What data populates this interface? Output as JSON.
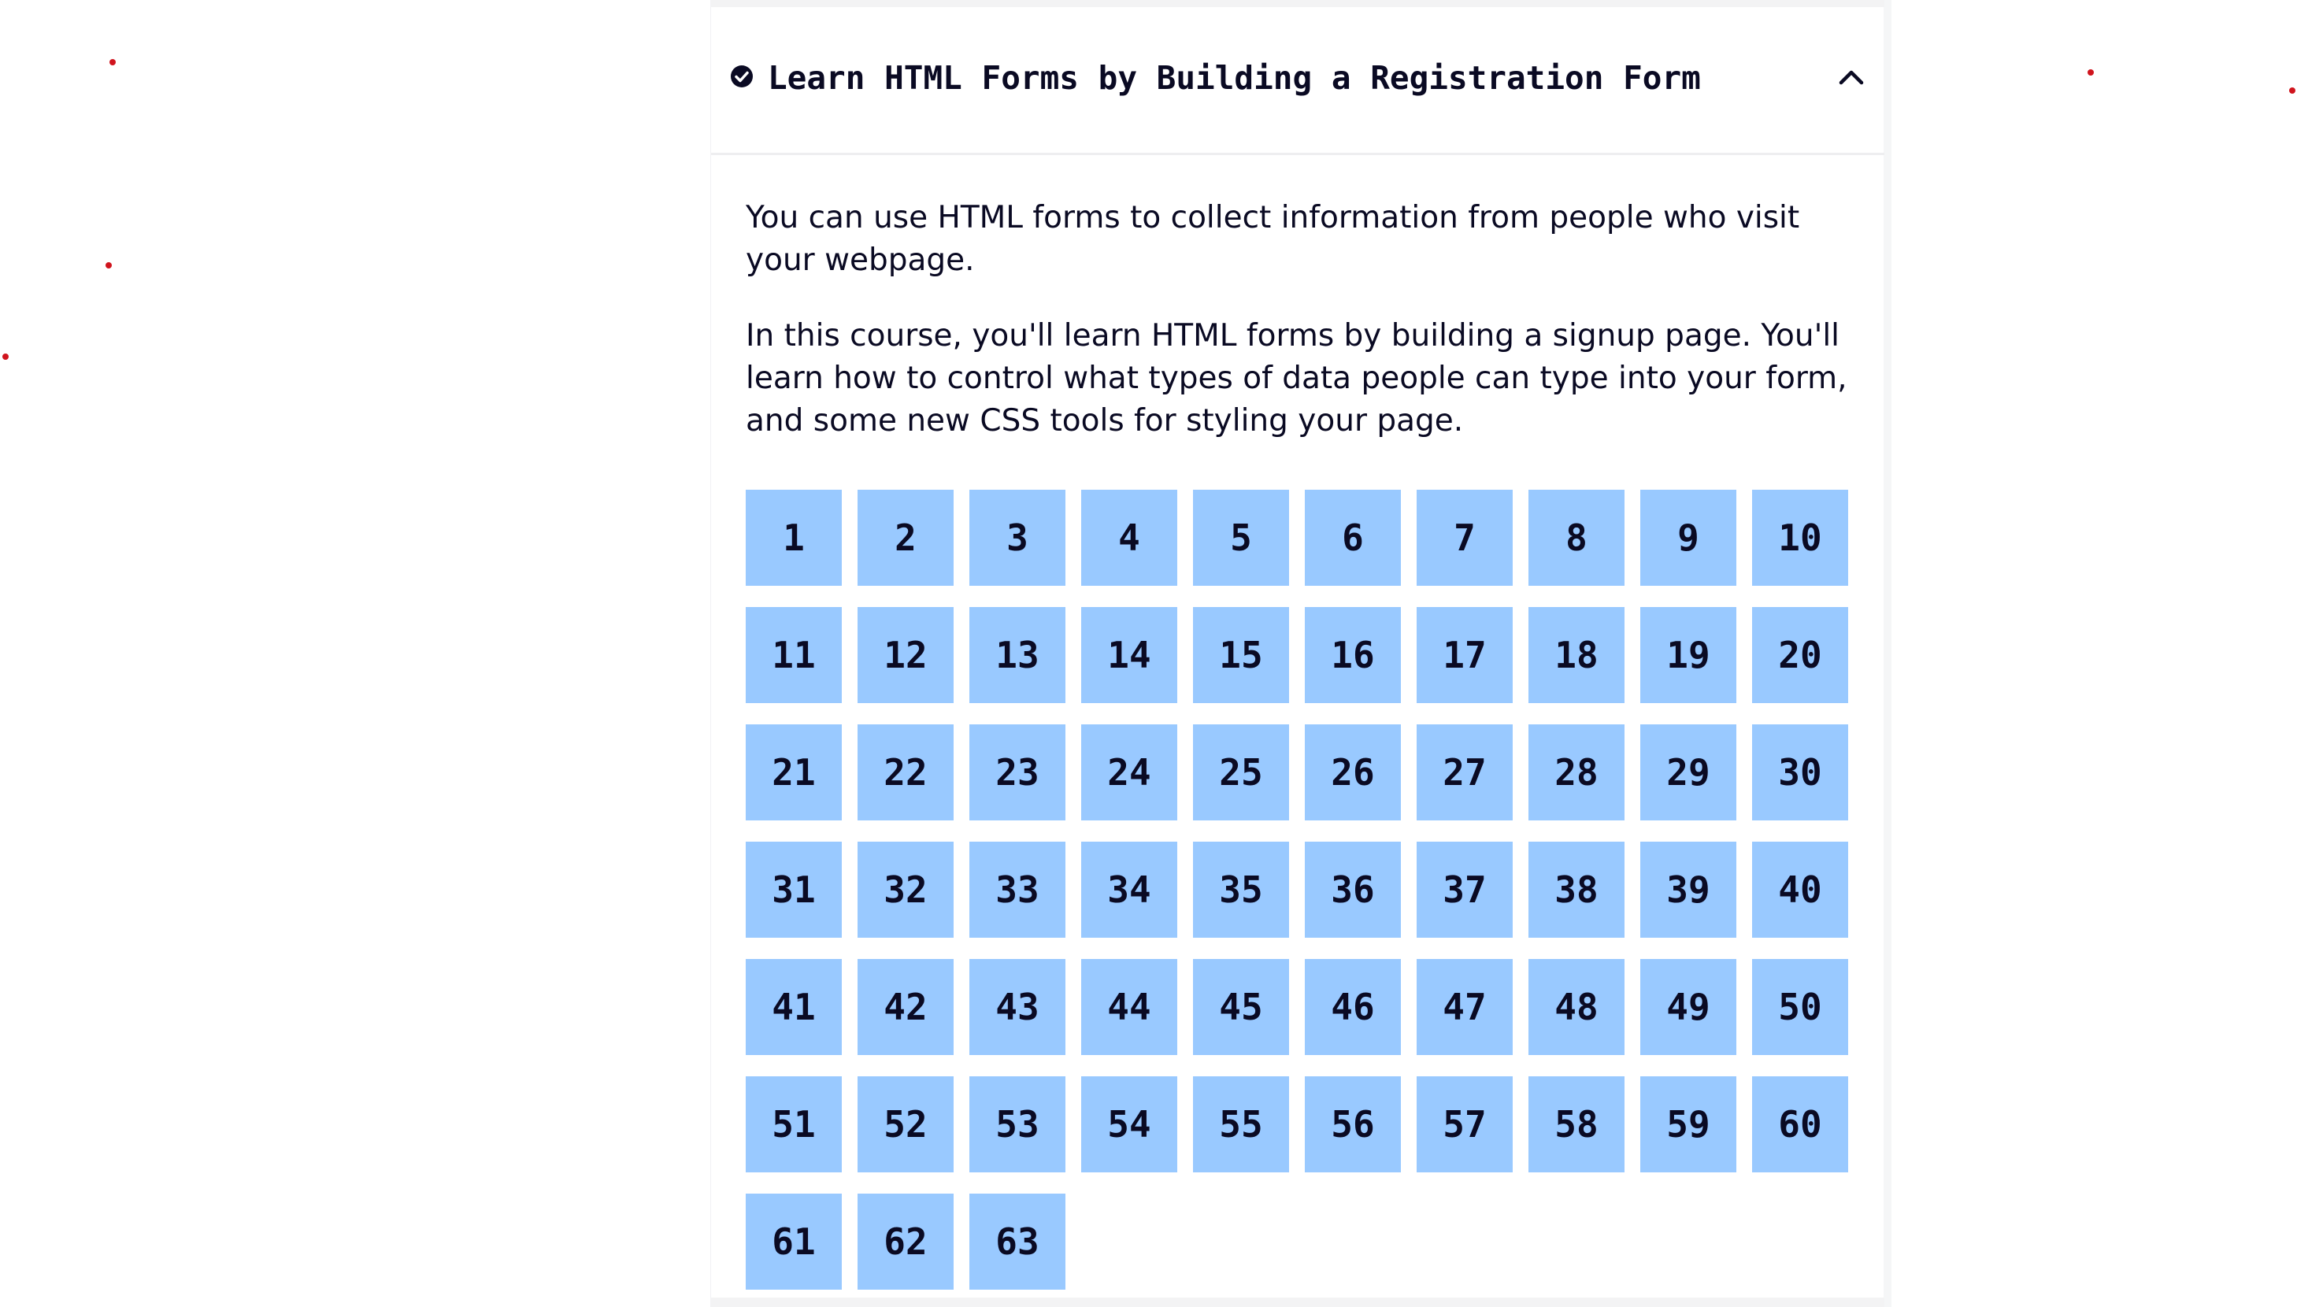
{
  "course": {
    "title": "Learn HTML Forms by Building a Registration Form",
    "status_icon": "check-circle-icon",
    "toggle_icon": "chevron-up-icon",
    "description": [
      "You can use HTML forms to collect information from people who visit your webpage.",
      "In this course, you'll learn HTML forms by building a signup page. You'll learn how to control what types of data people can type into your form, and some new CSS tools for styling your page."
    ],
    "steps": [
      "1",
      "2",
      "3",
      "4",
      "5",
      "6",
      "7",
      "8",
      "9",
      "10",
      "11",
      "12",
      "13",
      "14",
      "15",
      "16",
      "17",
      "18",
      "19",
      "20",
      "21",
      "22",
      "23",
      "24",
      "25",
      "26",
      "27",
      "28",
      "29",
      "30",
      "31",
      "32",
      "33",
      "34",
      "35",
      "36",
      "37",
      "38",
      "39",
      "40",
      "41",
      "42",
      "43",
      "44",
      "45",
      "46",
      "47",
      "48",
      "49",
      "50",
      "51",
      "52",
      "53",
      "54",
      "55",
      "56",
      "57",
      "58",
      "59",
      "60",
      "61",
      "62",
      "63"
    ]
  },
  "colors": {
    "step_background": "#99c9ff",
    "text": "#0a0a23",
    "cursor_dots": "#d0141d"
  }
}
